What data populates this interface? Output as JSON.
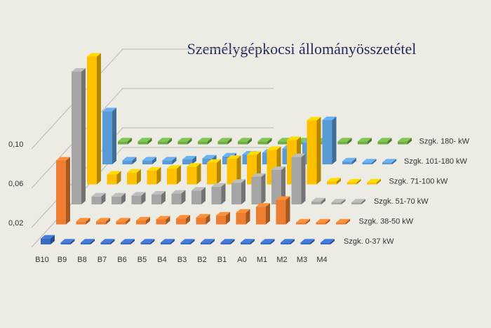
{
  "chart_data": {
    "type": "bar3d",
    "title": "Személygépkocsi állományösszetétel",
    "categories": [
      "B10",
      "B9",
      "B8",
      "B7",
      "B6",
      "B5",
      "B4",
      "B3",
      "B2",
      "B1",
      "A0",
      "M1",
      "M2",
      "M3",
      "M4"
    ],
    "ylim": [
      0,
      0.15
    ],
    "yticks": [
      {
        "value": 0.02,
        "label": "0,02"
      },
      {
        "value": 0.06,
        "label": "0,06"
      },
      {
        "value": 0.1,
        "label": "0,10"
      }
    ],
    "grid": true,
    "series": [
      {
        "name": "Szgk. 0-37 kW",
        "color": "#3a6bc4",
        "values": [
          0.006,
          0.002,
          0.002,
          0.002,
          0.002,
          0.002,
          0.002,
          0.002,
          0.002,
          0.002,
          0.002,
          0.002,
          0.002,
          0.002,
          0.002
        ]
      },
      {
        "name": "Szgk. 38-50 kW",
        "color": "#ed7d31",
        "values": [
          0.065,
          0.003,
          0.003,
          0.003,
          0.004,
          0.005,
          0.006,
          0.007,
          0.009,
          0.012,
          0.018,
          0.025,
          0.002,
          0.002,
          0.002
        ]
      },
      {
        "name": "Szgk. 51-70 kW",
        "color": "#a5a5a5",
        "values": [
          0.135,
          0.008,
          0.008,
          0.009,
          0.01,
          0.011,
          0.014,
          0.018,
          0.022,
          0.028,
          0.035,
          0.048,
          0.003,
          0.002,
          0.002
        ]
      },
      {
        "name": "Szgk. 71-100 kW",
        "color": "#ffc000",
        "values": [
          0.13,
          0.01,
          0.012,
          0.014,
          0.016,
          0.018,
          0.022,
          0.026,
          0.03,
          0.035,
          0.045,
          0.065,
          0.003,
          0.002,
          0.002
        ]
      },
      {
        "name": "Szgk. 101-180 kW",
        "color": "#5b9bd5",
        "values": [
          0.054,
          0.004,
          0.004,
          0.004,
          0.005,
          0.006,
          0.008,
          0.01,
          0.012,
          0.016,
          0.022,
          0.045,
          0.003,
          0.002,
          0.002
        ]
      },
      {
        "name": "Szgk. 180- kW",
        "color": "#70ad47",
        "values": [
          0.003,
          0.003,
          0.003,
          0.003,
          0.003,
          0.003,
          0.003,
          0.003,
          0.003,
          0.003,
          0.003,
          0.003,
          0.003,
          0.003,
          0.003
        ]
      }
    ]
  }
}
